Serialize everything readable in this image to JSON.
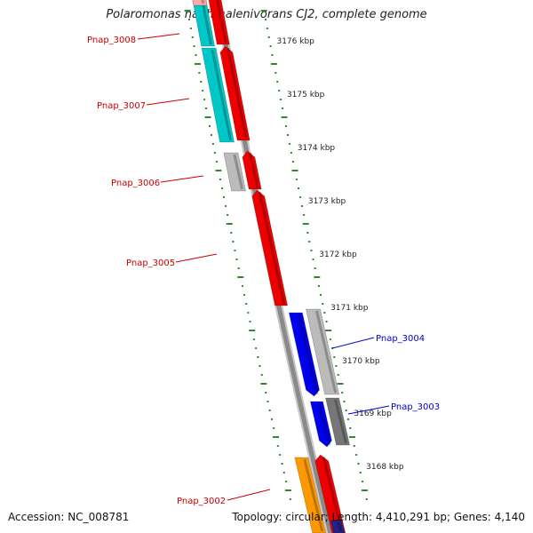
{
  "header": {
    "title": "Polaromonas naphthalenivorans CJ2, complete genome"
  },
  "footer": {
    "accession": "Accession: NC_008781",
    "topology": "Topology: circular; Length: 4,410,291 bp; Genes: 4,140"
  },
  "colors": {
    "backbone": "#8a8a8a",
    "tick": "#2e8b2e",
    "forward_strand_label": "#cc0000",
    "reverse_strand_label": "#0000cc",
    "gene_red": "#ee0000",
    "gene_cyan": "#00c8c8",
    "gene_gray": "#bbbbbb",
    "gene_blue": "#0000ee",
    "gene_orange": "#ff9900",
    "gene_pink": "#ffaaaa",
    "gene_dark_gray": "#777777",
    "gene_navy": "#222288"
  },
  "scale": {
    "labels": [
      "3176 kbp",
      "3175 kbp",
      "3174 kbp",
      "3173 kbp",
      "3172 kbp",
      "3171 kbp",
      "3170 kbp",
      "3169 kbp",
      "3168 kbp"
    ]
  },
  "gene_labels": [
    {
      "name": "Pnap_3008",
      "strand": "forward"
    },
    {
      "name": "Pnap_3007",
      "strand": "forward"
    },
    {
      "name": "Pnap_3006",
      "strand": "forward"
    },
    {
      "name": "Pnap_3005",
      "strand": "forward"
    },
    {
      "name": "Pnap_3004",
      "strand": "reverse"
    },
    {
      "name": "Pnap_3003",
      "strand": "reverse"
    },
    {
      "name": "Pnap_3002",
      "strand": "forward"
    }
  ]
}
